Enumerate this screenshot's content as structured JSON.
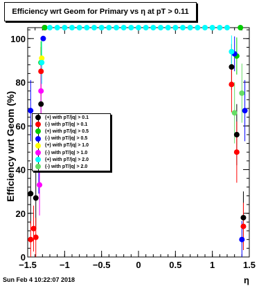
{
  "header": {
    "title": "Efficiency wrt Geom for Primary vs   η at pT > 0.11"
  },
  "footer": {
    "date": "Sun Feb  4 10:22:07 2018"
  },
  "chart_data": {
    "type": "scatter",
    "title": "Efficiency wrt Geom for Primary vs   η at pT > 0.11",
    "xlabel": "η",
    "ylabel": "Efficiency wrt Geom (%)",
    "xlim": [
      -1.5,
      1.5
    ],
    "ylim": [
      0,
      105
    ],
    "xticks": [
      -1.5,
      -1,
      -0.5,
      0,
      0.5,
      1,
      1.5
    ],
    "xtick_labels": [
      "−1.5",
      "−1",
      "−0.5",
      "0",
      "0.5",
      "1",
      "1.5"
    ],
    "yticks": [
      0,
      20,
      40,
      60,
      80,
      100
    ],
    "ytick_labels": [
      "0",
      "20",
      "40",
      "60",
      "80",
      "100"
    ],
    "grid": false,
    "legend_position": "center-left",
    "series": [
      {
        "name": "(+) with pT/|q| > 0.1",
        "color": "#000000",
        "x": [
          -1.46,
          -1.39,
          -1.32,
          -1.27,
          1.26,
          1.33,
          1.42
        ],
        "y": [
          29,
          27,
          70,
          105,
          87,
          56,
          18
        ]
      },
      {
        "name": "(-) with pT/|q| > 0.1",
        "color": "#ff0000",
        "x": [
          -1.46,
          -1.42,
          -1.39,
          -1.32,
          -1.27,
          1.26,
          1.33,
          1.42
        ],
        "y": [
          8,
          13,
          9,
          85,
          105,
          79,
          48,
          14
        ]
      },
      {
        "name": "(+) with pT/|q| > 0.5",
        "color": "#00cc00",
        "x": [
          -1.32,
          -1.27,
          1.33,
          1.38
        ],
        "y": [
          89,
          105,
          92,
          105
        ]
      },
      {
        "name": "(-) with pT/|q| > 0.5",
        "color": "#0000ff",
        "x": [
          -1.46,
          -1.35,
          -1.29,
          1.3,
          1.4,
          1.44
        ],
        "y": [
          67,
          43,
          100,
          93,
          8,
          67
        ]
      },
      {
        "name": "(+) with pT/|q| > 1.0",
        "color": "#ffff00",
        "x": [
          -1.31
        ],
        "y": [
          91
        ]
      },
      {
        "name": "(-) with pT/|q| > 1.0",
        "color": "#ff00ff",
        "x": [
          -1.34,
          -1.32
        ],
        "y": [
          33,
          76
        ]
      },
      {
        "name": "(+) with pT/|q| > 2.0",
        "color": "#00ffff",
        "x": [
          -1.31,
          -1.2,
          -1.1,
          -1.0,
          -0.9,
          -0.8,
          -0.7,
          -0.6,
          -0.5,
          -0.4,
          -0.3,
          -0.2,
          -0.1,
          0.0,
          0.1,
          0.2,
          0.3,
          0.4,
          0.5,
          0.6,
          0.7,
          0.8,
          0.9,
          1.0,
          1.1,
          1.2,
          1.26
        ],
        "y": [
          89,
          105,
          105,
          105,
          105,
          105,
          105,
          105,
          105,
          105,
          105,
          105,
          105,
          105,
          105,
          105,
          105,
          105,
          105,
          105,
          105,
          105,
          105,
          105,
          105,
          105,
          94
        ]
      },
      {
        "name": "(-) with pT/|q| > 2.0",
        "color": "#66dd66",
        "x": [
          1.3,
          1.4
        ],
        "y": [
          66,
          75
        ]
      }
    ]
  }
}
